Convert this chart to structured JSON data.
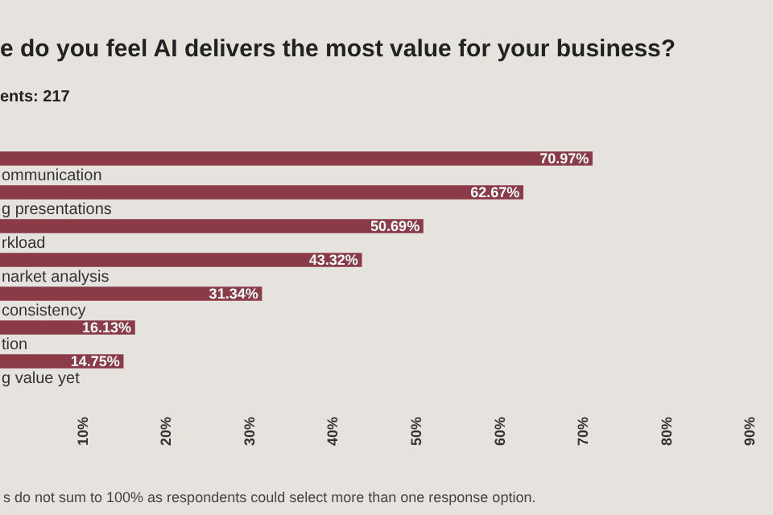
{
  "chart_data": {
    "type": "bar",
    "orientation": "horizontal",
    "title": "e do you feel AI delivers the most value for your business?",
    "subtitle": "ents: 217",
    "categories": [
      null,
      "ommunication",
      "g presentations",
      "rkload",
      "narket analysis",
      "consistency",
      "tion",
      "g value yet"
    ],
    "values": [
      70.97,
      62.67,
      50.69,
      43.32,
      31.34,
      16.13,
      14.75,
      null
    ],
    "value_labels": [
      "70.97%",
      "62.67%",
      "50.69%",
      "43.32%",
      "31.34%",
      "16.13%",
      "14.75%",
      null
    ],
    "color": "#8b3a47",
    "xlim": [
      0,
      90
    ],
    "xticks": [
      {
        "value": 10,
        "label": "10%"
      },
      {
        "value": 20,
        "label": "20%"
      },
      {
        "value": 30,
        "label": "30%"
      },
      {
        "value": 40,
        "label": "40%"
      },
      {
        "value": 50,
        "label": "50%"
      },
      {
        "value": 60,
        "label": "60%"
      },
      {
        "value": 70,
        "label": "70%"
      },
      {
        "value": 80,
        "label": "80%"
      },
      {
        "value": 90,
        "label": "90%"
      }
    ],
    "grid": false,
    "legend": false,
    "annotations": [
      "s do not sum to 100% as respondents could select more than one response option."
    ]
  }
}
